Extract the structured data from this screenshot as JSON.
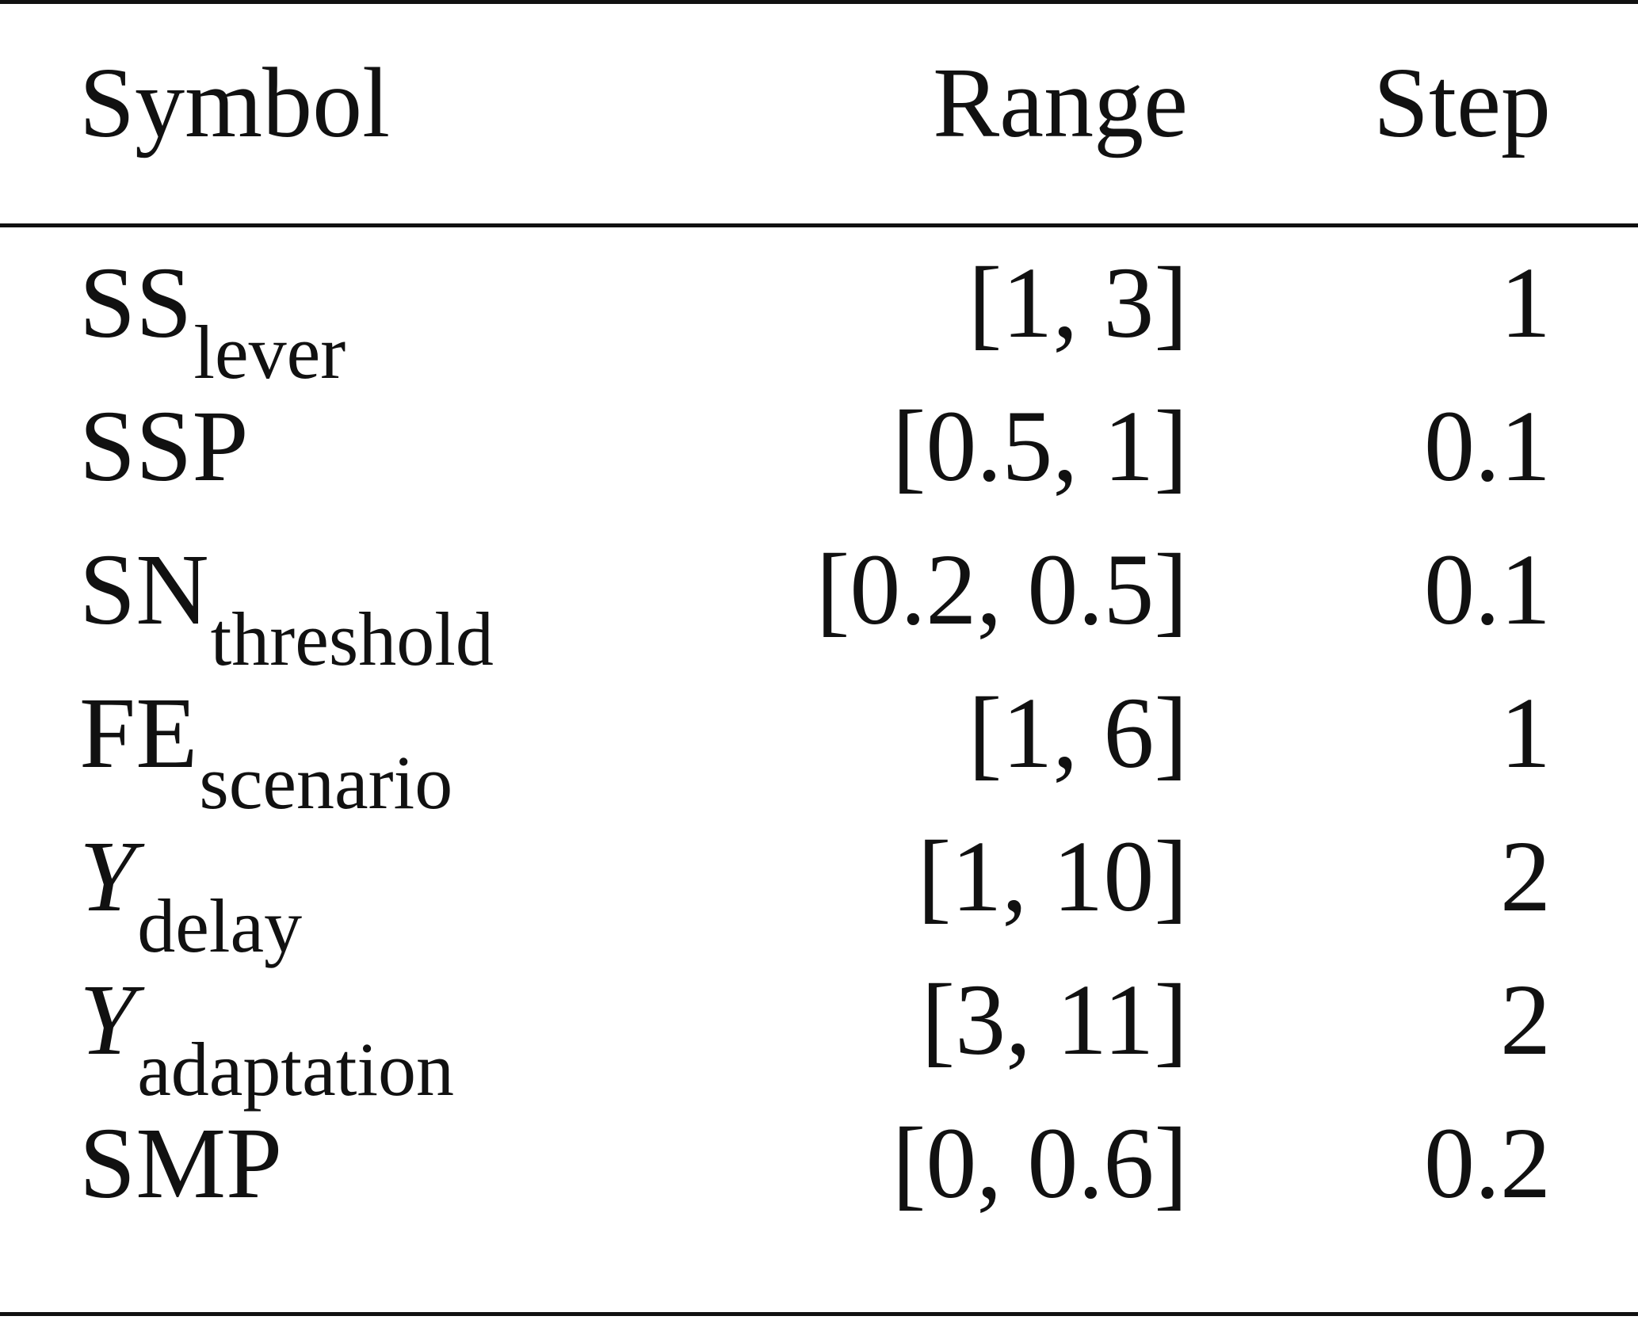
{
  "table": {
    "headers": {
      "symbol": "Symbol",
      "range": "Range",
      "step": "Step"
    },
    "rows": [
      {
        "symbol_base": "SS",
        "symbol_italic": false,
        "symbol_sub": "lever",
        "range": "[1, 3]",
        "step": "1"
      },
      {
        "symbol_base": "SSP",
        "symbol_italic": false,
        "symbol_sub": "",
        "range": "[0.5, 1]",
        "step": "0.1"
      },
      {
        "symbol_base": "SN",
        "symbol_italic": false,
        "symbol_sub": "threshold",
        "range": "[0.2, 0.5]",
        "step": "0.1"
      },
      {
        "symbol_base": "FE",
        "symbol_italic": false,
        "symbol_sub": "scenario",
        "range": "[1, 6]",
        "step": "1"
      },
      {
        "symbol_base": "Y",
        "symbol_italic": true,
        "symbol_sub": "delay",
        "range": "[1, 10]",
        "step": "2"
      },
      {
        "symbol_base": "Y",
        "symbol_italic": true,
        "symbol_sub": "adaptation",
        "range": "[3, 11]",
        "step": "2"
      },
      {
        "symbol_base": "SMP",
        "symbol_italic": false,
        "symbol_sub": "",
        "range": "[0, 0.6]",
        "step": "0.2"
      }
    ]
  }
}
